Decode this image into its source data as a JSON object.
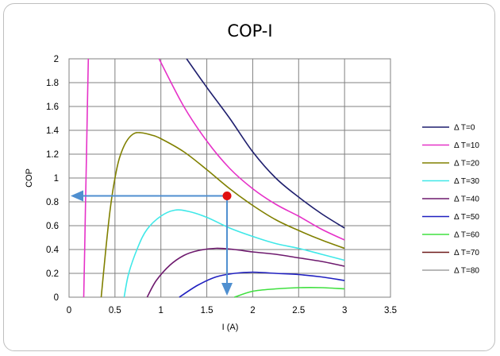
{
  "chart_data": {
    "type": "line",
    "title": "COP-I",
    "xlabel": "I (A)",
    "ylabel": "COP",
    "xlim": [
      0,
      3.5
    ],
    "ylim": [
      0,
      2
    ],
    "grid": true,
    "legend_position": "right",
    "x_ticks": [
      "0",
      "0.5",
      "1",
      "1.5",
      "2",
      "2.5",
      "3",
      "3.5"
    ],
    "y_ticks": [
      "0",
      "0.2",
      "0.4",
      "0.6",
      "0.8",
      "1",
      "1.2",
      "1.4",
      "1.6",
      "1.8",
      "2"
    ],
    "series": [
      {
        "name": "Δ T=0",
        "color": "#1f1f6e",
        "points": [
          [
            1.28,
            2.0
          ],
          [
            1.5,
            1.76
          ],
          [
            1.75,
            1.5
          ],
          [
            2.0,
            1.22
          ],
          [
            2.25,
            1.0
          ],
          [
            2.5,
            0.84
          ],
          [
            2.75,
            0.7
          ],
          [
            3.0,
            0.58
          ]
        ]
      },
      {
        "name": "Δ T=10",
        "color": "#e632c8",
        "points": [
          [
            0.98,
            2.0
          ],
          [
            1.25,
            1.6
          ],
          [
            1.5,
            1.31
          ],
          [
            1.75,
            1.08
          ],
          [
            2.0,
            0.91
          ],
          [
            2.25,
            0.78
          ],
          [
            2.5,
            0.68
          ],
          [
            2.75,
            0.57
          ],
          [
            3.0,
            0.48
          ]
        ]
      },
      {
        "name": "Δ T=10",
        "color": "#e632c8",
        "points": [
          [
            0.16,
            0.0
          ],
          [
            0.17,
            0.4
          ],
          [
            0.18,
            0.8
          ],
          [
            0.19,
            1.2
          ],
          [
            0.2,
            1.6
          ],
          [
            0.21,
            2.0
          ]
        ]
      },
      {
        "name": "Δ T=20",
        "color": "#808000",
        "points": [
          [
            0.35,
            0.0
          ],
          [
            0.4,
            0.4
          ],
          [
            0.45,
            0.75
          ],
          [
            0.5,
            1.0
          ],
          [
            0.55,
            1.17
          ],
          [
            0.62,
            1.3
          ],
          [
            0.7,
            1.37
          ],
          [
            0.78,
            1.38
          ],
          [
            0.9,
            1.36
          ],
          [
            1.0,
            1.33
          ],
          [
            1.25,
            1.22
          ],
          [
            1.5,
            1.07
          ],
          [
            1.75,
            0.91
          ],
          [
            2.0,
            0.77
          ],
          [
            2.25,
            0.65
          ],
          [
            2.5,
            0.56
          ],
          [
            2.75,
            0.48
          ],
          [
            3.0,
            0.41
          ]
        ]
      },
      {
        "name": "Δ T=30",
        "color": "#40e8e8",
        "points": [
          [
            0.6,
            0.0
          ],
          [
            0.65,
            0.2
          ],
          [
            0.75,
            0.42
          ],
          [
            0.85,
            0.57
          ],
          [
            1.0,
            0.68
          ],
          [
            1.15,
            0.73
          ],
          [
            1.3,
            0.72
          ],
          [
            1.5,
            0.67
          ],
          [
            1.75,
            0.58
          ],
          [
            2.0,
            0.51
          ],
          [
            2.25,
            0.45
          ],
          [
            2.5,
            0.41
          ],
          [
            2.75,
            0.36
          ],
          [
            3.0,
            0.31
          ]
        ]
      },
      {
        "name": "Δ T=40",
        "color": "#6e1a6e",
        "points": [
          [
            0.85,
            0.0
          ],
          [
            0.95,
            0.14
          ],
          [
            1.1,
            0.27
          ],
          [
            1.25,
            0.35
          ],
          [
            1.4,
            0.39
          ],
          [
            1.6,
            0.41
          ],
          [
            1.8,
            0.4
          ],
          [
            2.0,
            0.38
          ],
          [
            2.25,
            0.36
          ],
          [
            2.5,
            0.33
          ],
          [
            2.75,
            0.3
          ],
          [
            3.0,
            0.26
          ]
        ]
      },
      {
        "name": "Δ T=50",
        "color": "#2020c0",
        "points": [
          [
            1.2,
            0.0
          ],
          [
            1.4,
            0.1
          ],
          [
            1.6,
            0.17
          ],
          [
            1.8,
            0.2
          ],
          [
            2.0,
            0.21
          ],
          [
            2.25,
            0.2
          ],
          [
            2.5,
            0.19
          ],
          [
            2.75,
            0.17
          ],
          [
            3.0,
            0.14
          ]
        ]
      },
      {
        "name": "Δ T=60",
        "color": "#40e040",
        "points": [
          [
            1.8,
            0.0
          ],
          [
            2.0,
            0.05
          ],
          [
            2.25,
            0.07
          ],
          [
            2.5,
            0.08
          ],
          [
            2.75,
            0.08
          ],
          [
            3.0,
            0.07
          ]
        ]
      },
      {
        "name": "Δ T=70",
        "color": "#6e1a1a",
        "points": []
      },
      {
        "name": "Δ T=80",
        "color": "#a0a0a0",
        "points": []
      }
    ],
    "annotation": {
      "point": [
        1.72,
        0.85
      ],
      "point_color": "#e01010",
      "arrow_color": "#4f8fd0",
      "horizontal_arrow_to_x": 0.0,
      "vertical_arrow_to_y": 0.0
    }
  }
}
